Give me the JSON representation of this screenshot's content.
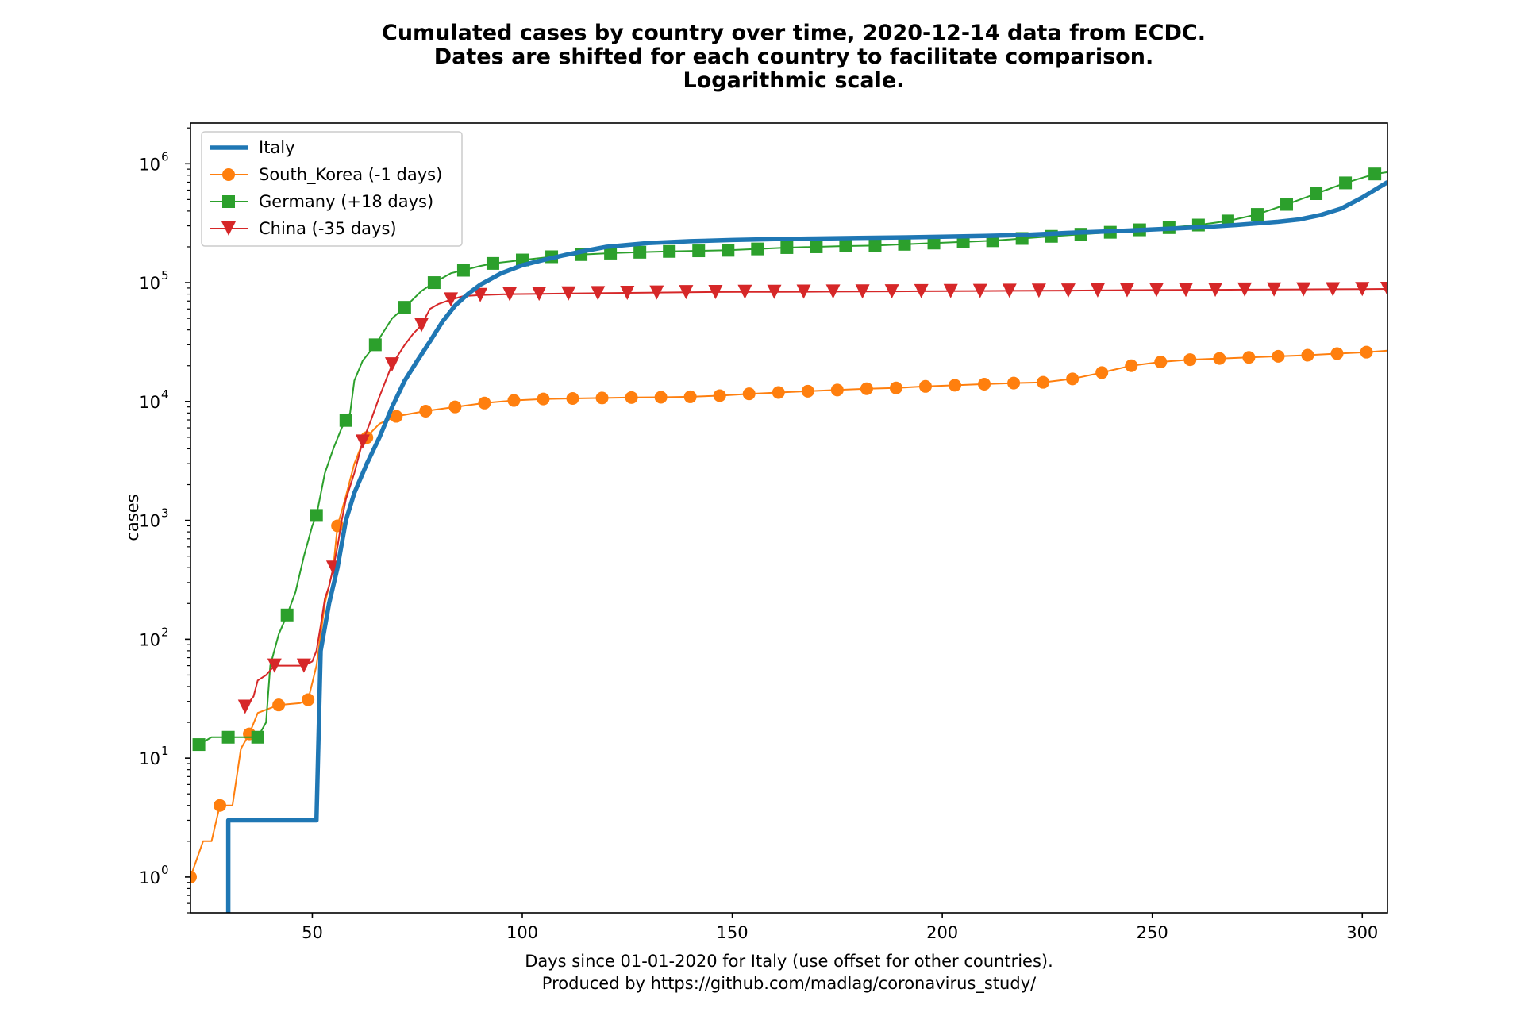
{
  "chart_data": {
    "type": "line",
    "title_lines": [
      "Cumulated cases by country over time, 2020-12-14 data from ECDC.",
      "Dates are shifted for each country to facilitate comparison.",
      "Logarithmic scale."
    ],
    "xlabel_lines": [
      "Days since 01-01-2020 for Italy (use offset for other countries).",
      "Produced by https://github.com/madlag/coronavirus_study/"
    ],
    "ylabel": "cases",
    "y_scale": "log",
    "xlim": [
      21,
      306
    ],
    "ylim": [
      0.5,
      2200000
    ],
    "x_ticks": [
      50,
      100,
      150,
      200,
      250,
      300
    ],
    "x_tick_labels": [
      "50",
      "100",
      "150",
      "200",
      "250",
      "300"
    ],
    "y_tick_exponents": [
      "0",
      "1",
      "2",
      "3",
      "4",
      "5",
      "6"
    ],
    "y_tick_base": "10",
    "grid": false,
    "legend_position": "top-left",
    "series": [
      {
        "name": "Italy",
        "color": "#1f77b4",
        "marker": "none",
        "line_width": "thick",
        "points": [
          [
            30,
            0.3
          ],
          [
            30,
            3
          ],
          [
            51,
            3
          ],
          [
            52,
            80
          ],
          [
            54,
            200
          ],
          [
            56,
            400
          ],
          [
            58,
            1000
          ],
          [
            60,
            1700
          ],
          [
            63,
            3000
          ],
          [
            66,
            5000
          ],
          [
            69,
            9000
          ],
          [
            72,
            15000
          ],
          [
            75,
            22000
          ],
          [
            78,
            32000
          ],
          [
            81,
            47000
          ],
          [
            84,
            64000
          ],
          [
            87,
            80000
          ],
          [
            90,
            96000
          ],
          [
            95,
            120000
          ],
          [
            100,
            140000
          ],
          [
            105,
            155000
          ],
          [
            110,
            170000
          ],
          [
            115,
            185000
          ],
          [
            120,
            200000
          ],
          [
            130,
            215000
          ],
          [
            140,
            223000
          ],
          [
            150,
            228000
          ],
          [
            160,
            232000
          ],
          [
            170,
            235000
          ],
          [
            180,
            238000
          ],
          [
            190,
            240000
          ],
          [
            200,
            243000
          ],
          [
            210,
            247000
          ],
          [
            220,
            252000
          ],
          [
            230,
            262000
          ],
          [
            240,
            270000
          ],
          [
            250,
            280000
          ],
          [
            260,
            290000
          ],
          [
            270,
            305000
          ],
          [
            280,
            325000
          ],
          [
            285,
            340000
          ],
          [
            290,
            370000
          ],
          [
            295,
            420000
          ],
          [
            300,
            520000
          ],
          [
            306,
            700000
          ]
        ]
      },
      {
        "name": "South_Korea (-1 days)",
        "color": "#ff7f0e",
        "marker": "circle",
        "line_width": "thin",
        "points": [
          [
            21,
            1
          ],
          [
            24,
            2
          ],
          [
            26,
            2
          ],
          [
            28,
            4
          ],
          [
            31,
            4
          ],
          [
            33,
            12
          ],
          [
            35,
            16
          ],
          [
            37,
            24
          ],
          [
            42,
            28
          ],
          [
            47,
            29
          ],
          [
            49,
            31
          ],
          [
            51,
            60
          ],
          [
            53,
            200
          ],
          [
            55,
            400
          ],
          [
            56,
            900
          ],
          [
            58,
            1600
          ],
          [
            60,
            3000
          ],
          [
            62,
            4500
          ],
          [
            64,
            5500
          ],
          [
            66,
            6500
          ],
          [
            70,
            7500
          ],
          [
            77,
            8300
          ],
          [
            84,
            9000
          ],
          [
            91,
            9700
          ],
          [
            98,
            10200
          ],
          [
            105,
            10500
          ],
          [
            112,
            10600
          ],
          [
            119,
            10700
          ],
          [
            126,
            10800
          ],
          [
            133,
            10850
          ],
          [
            140,
            10950
          ],
          [
            147,
            11200
          ],
          [
            154,
            11600
          ],
          [
            161,
            11900
          ],
          [
            168,
            12200
          ],
          [
            175,
            12500
          ],
          [
            182,
            12800
          ],
          [
            189,
            13000
          ],
          [
            196,
            13400
          ],
          [
            203,
            13700
          ],
          [
            210,
            14000
          ],
          [
            217,
            14300
          ],
          [
            224,
            14500
          ],
          [
            231,
            15500
          ],
          [
            238,
            17500
          ],
          [
            245,
            20000
          ],
          [
            252,
            21500
          ],
          [
            259,
            22500
          ],
          [
            266,
            23000
          ],
          [
            273,
            23500
          ],
          [
            280,
            24000
          ],
          [
            287,
            24500
          ],
          [
            294,
            25300
          ],
          [
            301,
            26000
          ],
          [
            306,
            26800
          ]
        ],
        "marker_x": [
          21,
          28,
          35,
          42,
          49,
          56,
          63,
          70,
          77,
          84,
          91,
          98,
          105,
          112,
          119,
          126,
          133,
          140,
          147,
          154,
          161,
          168,
          175,
          182,
          189,
          196,
          203,
          210,
          217,
          224,
          231,
          238,
          245,
          252,
          259,
          266,
          273,
          280,
          287,
          294,
          301
        ]
      },
      {
        "name": "Germany (+18 days)",
        "color": "#2ca02c",
        "marker": "square",
        "line_width": "thin",
        "points": [
          [
            23,
            13
          ],
          [
            26,
            15
          ],
          [
            30,
            15
          ],
          [
            34,
            15
          ],
          [
            37,
            15
          ],
          [
            39,
            20
          ],
          [
            40,
            60
          ],
          [
            42,
            110
          ],
          [
            44,
            160
          ],
          [
            46,
            250
          ],
          [
            48,
            500
          ],
          [
            50,
            900
          ],
          [
            51,
            1100
          ],
          [
            53,
            2500
          ],
          [
            55,
            4000
          ],
          [
            57,
            6000
          ],
          [
            59,
            8000
          ],
          [
            60,
            15000
          ],
          [
            62,
            22000
          ],
          [
            65,
            30000
          ],
          [
            69,
            50000
          ],
          [
            72,
            62000
          ],
          [
            76,
            85000
          ],
          [
            79,
            100000
          ],
          [
            83,
            120000
          ],
          [
            86,
            127000
          ],
          [
            90,
            138000
          ],
          [
            93,
            145000
          ],
          [
            100,
            155000
          ],
          [
            107,
            165000
          ],
          [
            114,
            172000
          ],
          [
            121,
            177000
          ],
          [
            128,
            180000
          ],
          [
            135,
            183000
          ],
          [
            142,
            185000
          ],
          [
            149,
            187000
          ],
          [
            156,
            192000
          ],
          [
            163,
            197000
          ],
          [
            170,
            200000
          ],
          [
            177,
            203000
          ],
          [
            184,
            205000
          ],
          [
            191,
            210000
          ],
          [
            198,
            215000
          ],
          [
            205,
            220000
          ],
          [
            212,
            225000
          ],
          [
            219,
            235000
          ],
          [
            226,
            245000
          ],
          [
            233,
            255000
          ],
          [
            240,
            265000
          ],
          [
            247,
            278000
          ],
          [
            254,
            290000
          ],
          [
            261,
            305000
          ],
          [
            268,
            330000
          ],
          [
            275,
            375000
          ],
          [
            282,
            455000
          ],
          [
            289,
            560000
          ],
          [
            296,
            690000
          ],
          [
            303,
            820000
          ],
          [
            306,
            850000
          ]
        ],
        "marker_x": [
          23,
          30,
          37,
          44,
          51,
          58,
          65,
          72,
          79,
          86,
          93,
          100,
          107,
          114,
          121,
          128,
          135,
          142,
          149,
          156,
          163,
          170,
          177,
          184,
          191,
          198,
          205,
          212,
          219,
          226,
          233,
          240,
          247,
          254,
          261,
          268,
          275,
          282,
          289,
          296,
          303
        ]
      },
      {
        "name": "China (-35 days)",
        "color": "#d62728",
        "marker": "triangle_down",
        "line_width": "thin",
        "points": [
          [
            34,
            27
          ],
          [
            36,
            33
          ],
          [
            37,
            45
          ],
          [
            39,
            50
          ],
          [
            41,
            60
          ],
          [
            44,
            60
          ],
          [
            48,
            60
          ],
          [
            50,
            65
          ],
          [
            51,
            80
          ],
          [
            52,
            130
          ],
          [
            53,
            220
          ],
          [
            54,
            280
          ],
          [
            55,
            400
          ],
          [
            56,
            600
          ],
          [
            57,
            1000
          ],
          [
            58,
            1500
          ],
          [
            60,
            2500
          ],
          [
            62,
            4600
          ],
          [
            64,
            7000
          ],
          [
            66,
            11000
          ],
          [
            69,
            20500
          ],
          [
            72,
            30000
          ],
          [
            74,
            37000
          ],
          [
            76,
            44000
          ],
          [
            78,
            60000
          ],
          [
            80,
            66000
          ],
          [
            83,
            72000
          ],
          [
            86,
            77000
          ],
          [
            90,
            78500
          ],
          [
            97,
            80000
          ],
          [
            104,
            80500
          ],
          [
            111,
            81000
          ],
          [
            118,
            81500
          ],
          [
            125,
            82000
          ],
          [
            132,
            82500
          ],
          [
            139,
            83000
          ],
          [
            146,
            83300
          ],
          [
            153,
            83500
          ],
          [
            160,
            83600
          ],
          [
            167,
            83800
          ],
          [
            174,
            84000
          ],
          [
            181,
            84200
          ],
          [
            188,
            84400
          ],
          [
            195,
            84600
          ],
          [
            202,
            84800
          ],
          [
            209,
            85000
          ],
          [
            216,
            85300
          ],
          [
            223,
            85500
          ],
          [
            230,
            85700
          ],
          [
            237,
            86000
          ],
          [
            244,
            86300
          ],
          [
            251,
            86600
          ],
          [
            258,
            86800
          ],
          [
            265,
            87000
          ],
          [
            272,
            87300
          ],
          [
            279,
            87500
          ],
          [
            286,
            87700
          ],
          [
            293,
            87900
          ],
          [
            300,
            88200
          ],
          [
            306,
            88500
          ]
        ],
        "marker_x": [
          34,
          41,
          48,
          55,
          62,
          69,
          76,
          83,
          90,
          97,
          104,
          111,
          118,
          125,
          132,
          139,
          146,
          153,
          160,
          167,
          174,
          181,
          188,
          195,
          202,
          209,
          216,
          223,
          230,
          237,
          244,
          251,
          258,
          265,
          272,
          279,
          286,
          293,
          300,
          306
        ]
      }
    ]
  }
}
